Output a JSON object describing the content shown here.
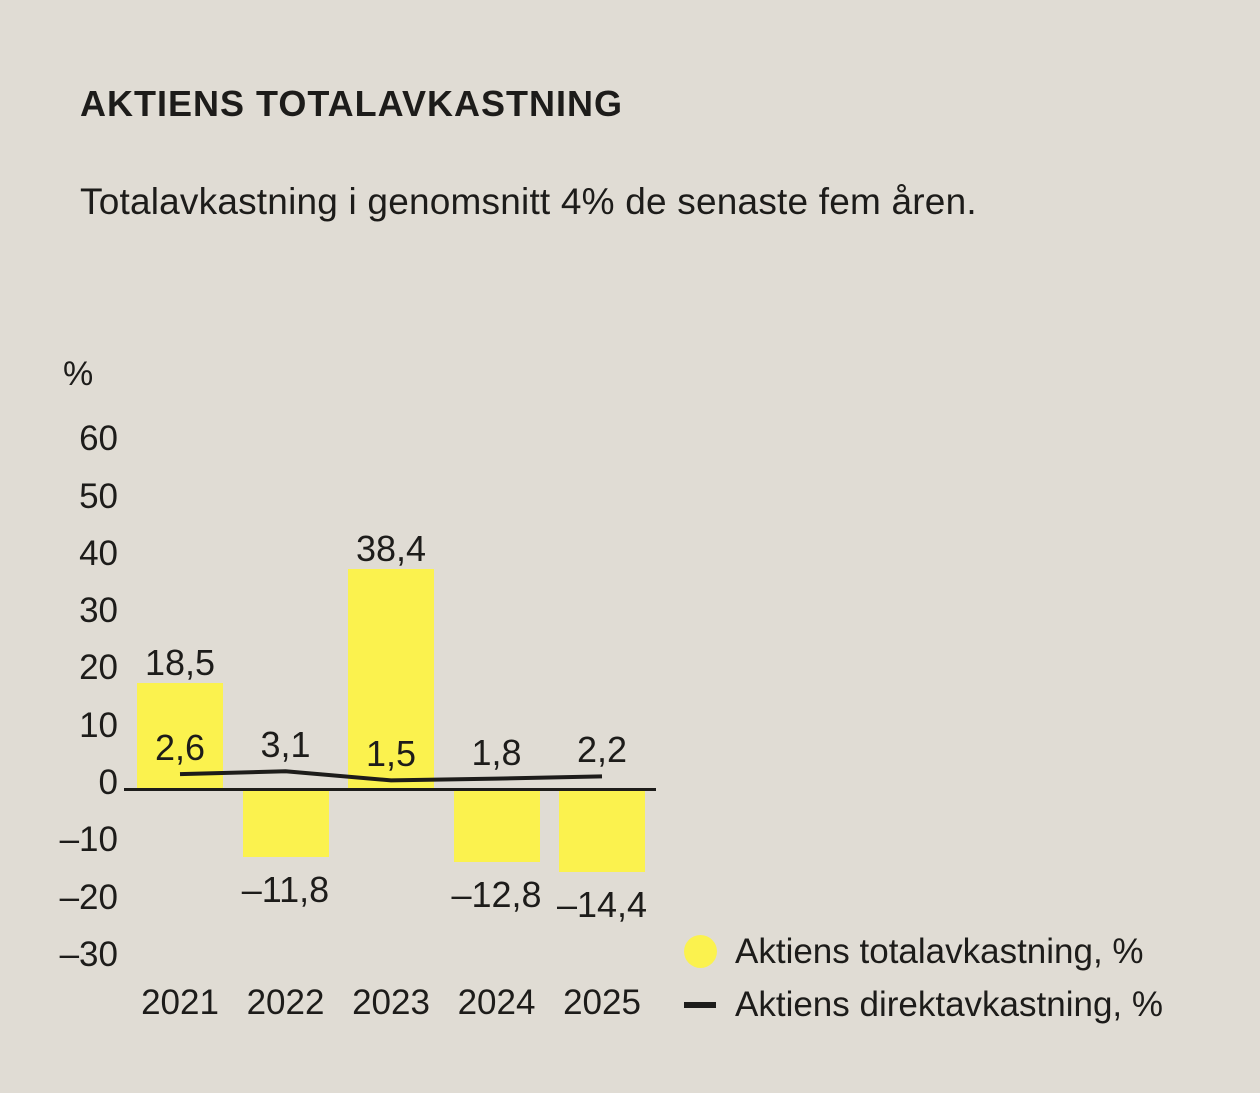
{
  "title": "AKTIENS TOTALAVKASTNING",
  "subtitle": "Totalavkastning i genomsnitt 4% de senaste fem åren.",
  "colors": {
    "background": "#e0dcd4",
    "bar_yellow": "#fbf24e",
    "ink": "#1d1c1a"
  },
  "chart_data": {
    "type": "bar",
    "title": "AKTIENS TOTALAVKASTNING",
    "subtitle": "Totalavkastning i genomsnitt 4% de senaste fem åren.",
    "unit_label": "%",
    "categories": [
      "2021",
      "2022",
      "2023",
      "2024",
      "2025"
    ],
    "series": [
      {
        "name": "Aktiens totalavkastning, %",
        "type": "bar",
        "color": "#fbf24e",
        "values": [
          18.5,
          -11.8,
          38.4,
          -12.8,
          -14.4
        ],
        "labels": [
          "18,5",
          "–11,8",
          "38,4",
          "–12,8",
          "–14,4"
        ]
      },
      {
        "name": "Aktiens direktavkastning, %",
        "type": "line",
        "color": "#1d1c1a",
        "values": [
          2.6,
          3.1,
          1.5,
          1.8,
          2.2
        ],
        "labels": [
          "2,6",
          "3,1",
          "1,5",
          "1,8",
          "2,2"
        ]
      }
    ],
    "ylim": [
      -30,
      60
    ],
    "yticks": [
      60,
      50,
      40,
      30,
      20,
      10,
      0,
      -10,
      -20,
      -30
    ],
    "ytick_labels": [
      "60",
      "50",
      "40",
      "30",
      "20",
      "10",
      "0",
      "–10",
      "–20",
      "–30"
    ],
    "grid": false,
    "legend_position": "bottom-right"
  }
}
